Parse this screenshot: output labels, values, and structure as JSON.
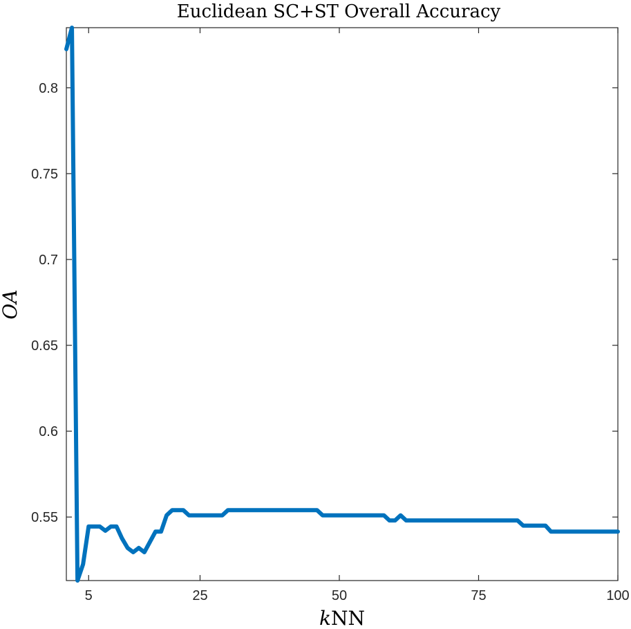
{
  "chart_data": {
    "type": "line",
    "title": "Euclidean SC+ST Overall Accuracy",
    "xlabel": {
      "italic": "k",
      "rest": "NN"
    },
    "ylabel": "OA",
    "xlim": [
      1,
      100
    ],
    "ylim": [
      0.513,
      0.835
    ],
    "xticks": [
      5,
      25,
      50,
      75,
      100
    ],
    "yticks": [
      0.55,
      0.6,
      0.65,
      0.7,
      0.75,
      0.8
    ],
    "ytick_labels": [
      "0.55",
      "0.6",
      "0.65",
      "0.7",
      "0.75",
      "0.8"
    ],
    "grid": false,
    "box": true,
    "series": [
      {
        "color": "#0072BD",
        "x": [
          1,
          2,
          3,
          4,
          5,
          6,
          7,
          8,
          9,
          10,
          11,
          12,
          13,
          14,
          15,
          16,
          17,
          18,
          19,
          20,
          21,
          22,
          23,
          24,
          25,
          26,
          27,
          28,
          29,
          30,
          31,
          32,
          33,
          34,
          35,
          36,
          37,
          38,
          39,
          40,
          41,
          42,
          43,
          44,
          45,
          46,
          47,
          48,
          49,
          50,
          51,
          52,
          53,
          54,
          55,
          56,
          57,
          58,
          59,
          60,
          61,
          62,
          63,
          64,
          65,
          66,
          67,
          68,
          69,
          70,
          71,
          72,
          73,
          74,
          75,
          76,
          77,
          78,
          79,
          80,
          81,
          82,
          83,
          84,
          85,
          86,
          87,
          88,
          89,
          90,
          91,
          92,
          93,
          94,
          95,
          96,
          97,
          98,
          99,
          100
        ],
        "y": [
          0.8225,
          0.835,
          0.513,
          0.5225,
          0.5445,
          0.5445,
          0.5445,
          0.542,
          0.5445,
          0.5445,
          0.5375,
          0.532,
          0.5295,
          0.532,
          0.5295,
          0.5355,
          0.5415,
          0.5415,
          0.551,
          0.554,
          0.554,
          0.554,
          0.551,
          0.551,
          0.551,
          0.551,
          0.551,
          0.551,
          0.551,
          0.554,
          0.554,
          0.554,
          0.554,
          0.554,
          0.554,
          0.554,
          0.554,
          0.554,
          0.554,
          0.554,
          0.554,
          0.554,
          0.554,
          0.554,
          0.554,
          0.554,
          0.551,
          0.551,
          0.551,
          0.551,
          0.551,
          0.551,
          0.551,
          0.551,
          0.551,
          0.551,
          0.551,
          0.551,
          0.548,
          0.548,
          0.551,
          0.548,
          0.548,
          0.548,
          0.548,
          0.548,
          0.548,
          0.548,
          0.548,
          0.548,
          0.548,
          0.548,
          0.548,
          0.548,
          0.548,
          0.548,
          0.548,
          0.548,
          0.548,
          0.548,
          0.548,
          0.548,
          0.545,
          0.545,
          0.545,
          0.545,
          0.545,
          0.5415,
          0.5415,
          0.5415,
          0.5415,
          0.5415,
          0.5415,
          0.5415,
          0.5415,
          0.5415,
          0.5415,
          0.5415,
          0.5415,
          0.5415
        ]
      }
    ]
  }
}
